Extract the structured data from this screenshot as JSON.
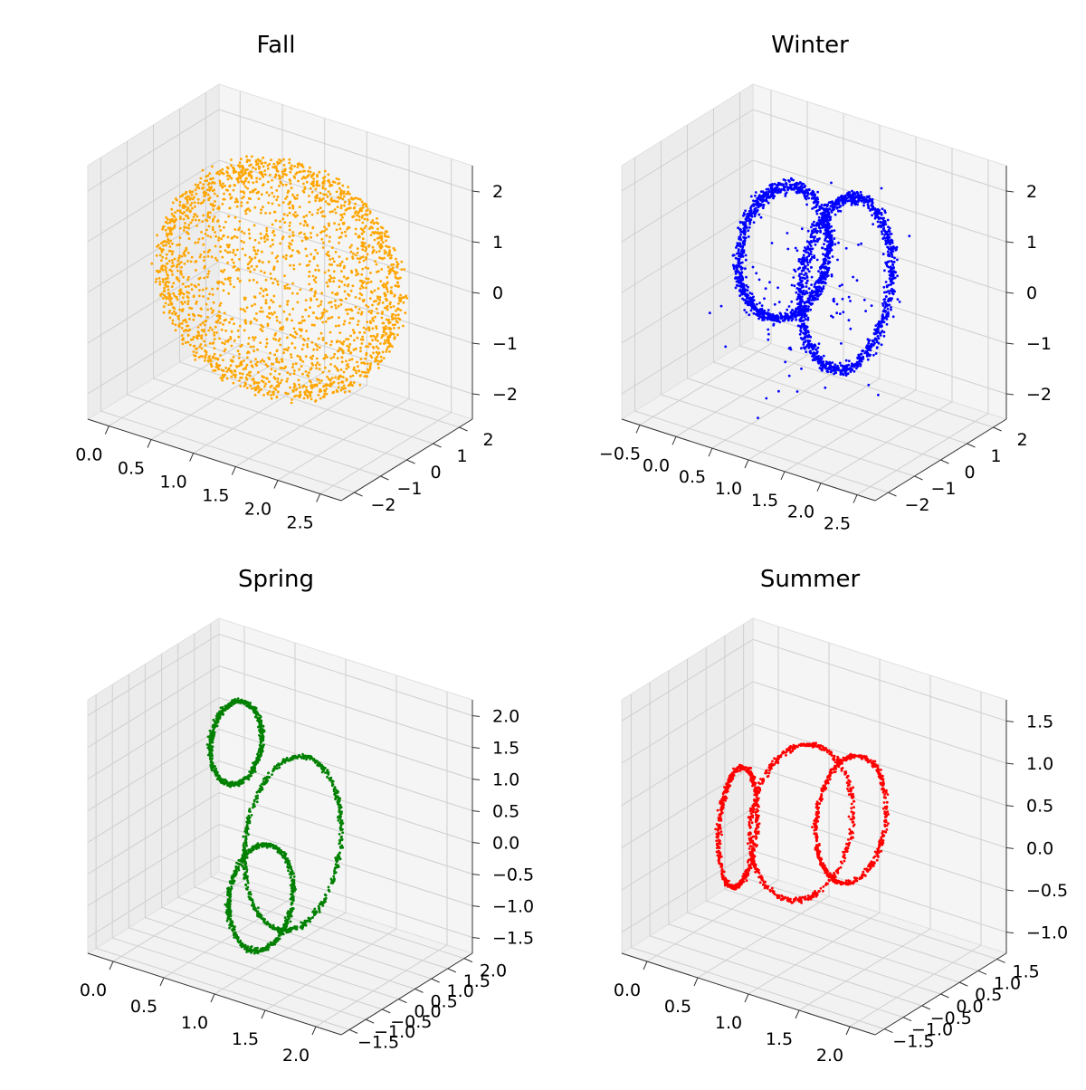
{
  "chart_data": [
    {
      "type": "scatter",
      "projection": "3d",
      "title": "Fall",
      "color": "#ffa500",
      "shape": "sphere-shell",
      "point_count": 2400,
      "xticks": [
        "0.0",
        "0.5",
        "1.0",
        "1.5",
        "2.0",
        "2.5"
      ],
      "yticks": [
        "−2",
        "−1",
        "0",
        "1",
        "2"
      ],
      "zticks": [
        "−2",
        "−1",
        "0",
        "1",
        "2"
      ],
      "xlim": [
        -0.2,
        2.6
      ],
      "ylim": [
        -2.4,
        2.4
      ],
      "zlim": [
        -2.3,
        2.3
      ],
      "grid": true
    },
    {
      "type": "scatter",
      "projection": "3d",
      "title": "Winter",
      "color": "#0000ff",
      "shape": "loops",
      "point_count": 2200,
      "xticks": [
        "−0.5",
        "0.0",
        "0.5",
        "1.0",
        "1.5",
        "2.0",
        "2.5"
      ],
      "yticks": [
        "−2",
        "−1",
        "0",
        "1",
        "2"
      ],
      "zticks": [
        "−2",
        "−1",
        "0",
        "1",
        "2"
      ],
      "xlim": [
        -0.7,
        2.6
      ],
      "ylim": [
        -2.5,
        2.5
      ],
      "zlim": [
        -2.1,
        2.8
      ],
      "grid": true
    },
    {
      "type": "scatter",
      "projection": "3d",
      "title": "Spring",
      "color": "#008000",
      "shape": "loops",
      "point_count": 1800,
      "xticks": [
        "0.0",
        "0.5",
        "1.0",
        "1.5",
        "2.0"
      ],
      "yticks": [
        "−1.5",
        "−1.0",
        "−0.5",
        "0.0",
        "0.5",
        "1.0",
        "1.5",
        "2.0"
      ],
      "zticks": [
        "−1.5",
        "−1.0",
        "−0.5",
        "0.0",
        "0.5",
        "1.0",
        "1.5",
        "2.0"
      ],
      "xlim": [
        -0.2,
        2.2
      ],
      "ylim": [
        -1.7,
        2.2
      ],
      "zlim": [
        -1.8,
        2.1
      ],
      "grid": true
    },
    {
      "type": "scatter",
      "projection": "3d",
      "title": "Summer",
      "color": "#ff0000",
      "shape": "loops",
      "point_count": 1600,
      "xticks": [
        "0.0",
        "0.5",
        "1.0",
        "1.5",
        "2.0"
      ],
      "yticks": [
        "−1.5",
        "−1.0",
        "−0.5",
        "0.0",
        "0.5",
        "1.0",
        "1.5"
      ],
      "zticks": [
        "−1.0",
        "−0.5",
        "0.0",
        "0.5",
        "1.0",
        "1.5"
      ],
      "xlim": [
        -0.2,
        2.0
      ],
      "ylim": [
        -1.7,
        1.8
      ],
      "zlim": [
        -1.2,
        2.0
      ],
      "grid": true
    }
  ]
}
